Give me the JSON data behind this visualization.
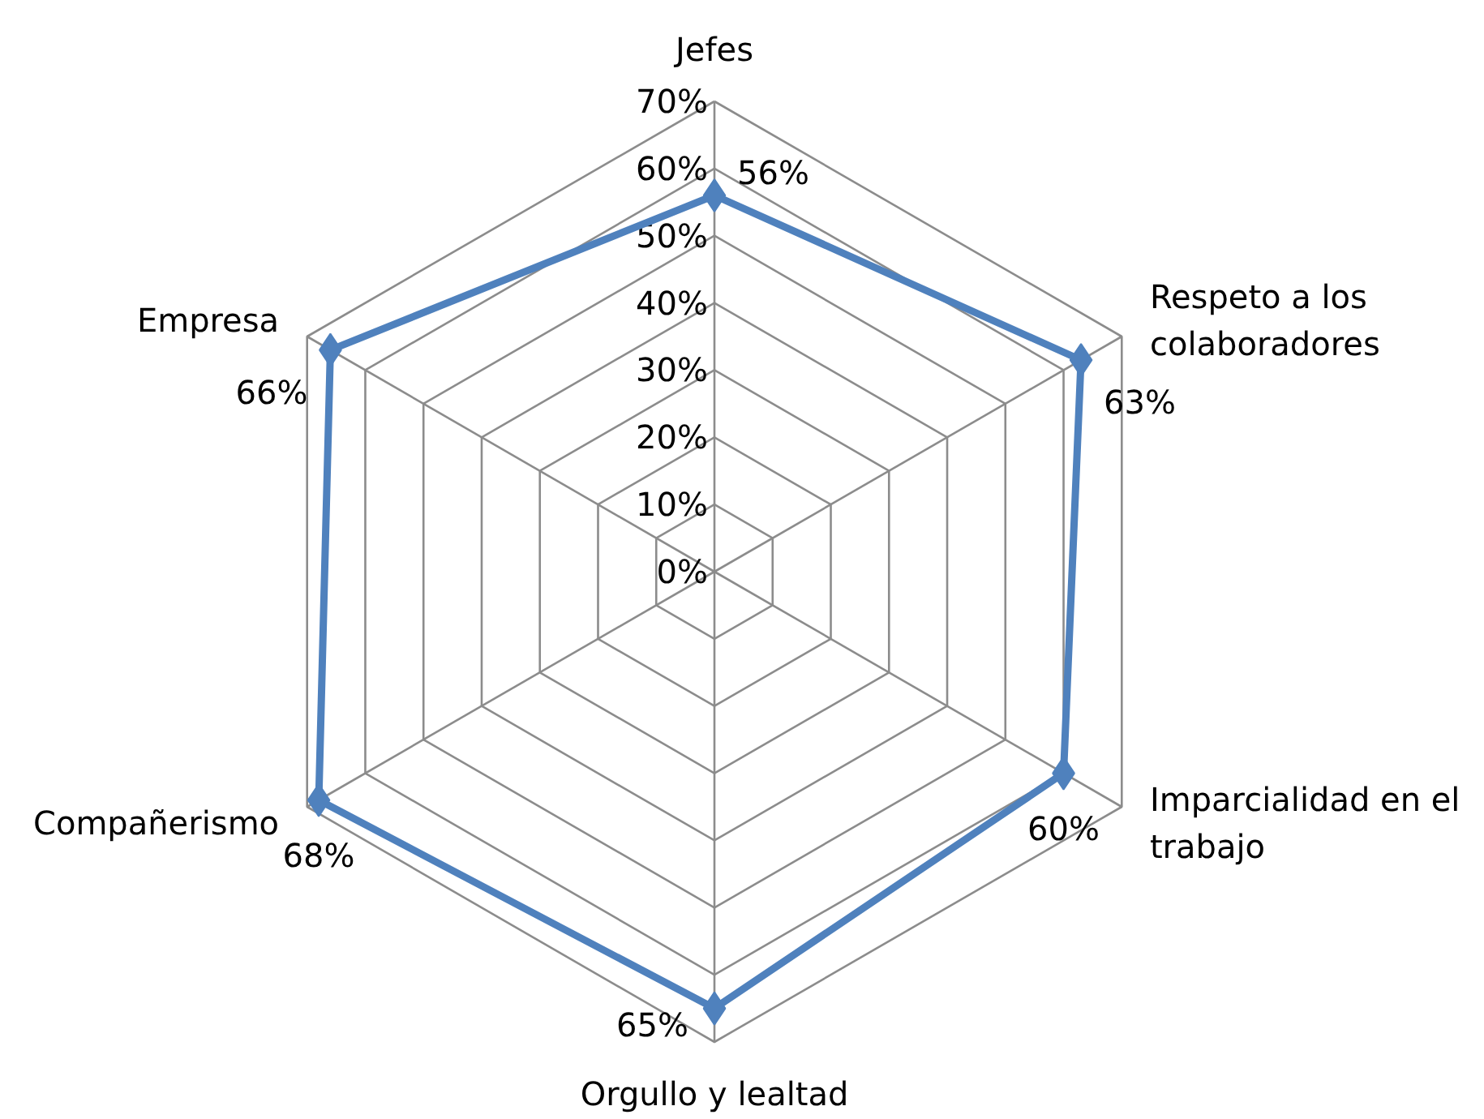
{
  "chart_data": {
    "type": "radar",
    "categories": [
      "Jefes",
      "Respeto a los colaboradores",
      "Imparcialidad en el trabajo",
      "Orgullo y lealtad",
      "Compañerismo",
      "Empresa"
    ],
    "series": [
      {
        "color": "#4f81bd",
        "values": [
          56,
          63,
          60,
          65,
          68,
          66
        ],
        "value_labels": [
          "56%",
          "63%",
          "60%",
          "65%",
          "68%",
          "66%"
        ]
      }
    ],
    "ylim": [
      0,
      70
    ],
    "yticks": [
      {
        "value": 0,
        "label": "0%"
      },
      {
        "value": 10,
        "label": "10%"
      },
      {
        "value": 20,
        "label": "20%"
      },
      {
        "value": 30,
        "label": "30%"
      },
      {
        "value": 40,
        "label": "40%"
      },
      {
        "value": 50,
        "label": "50%"
      },
      {
        "value": 60,
        "label": "60%"
      },
      {
        "value": 70,
        "label": "70%"
      }
    ],
    "grid": true,
    "marker": "diamond"
  }
}
